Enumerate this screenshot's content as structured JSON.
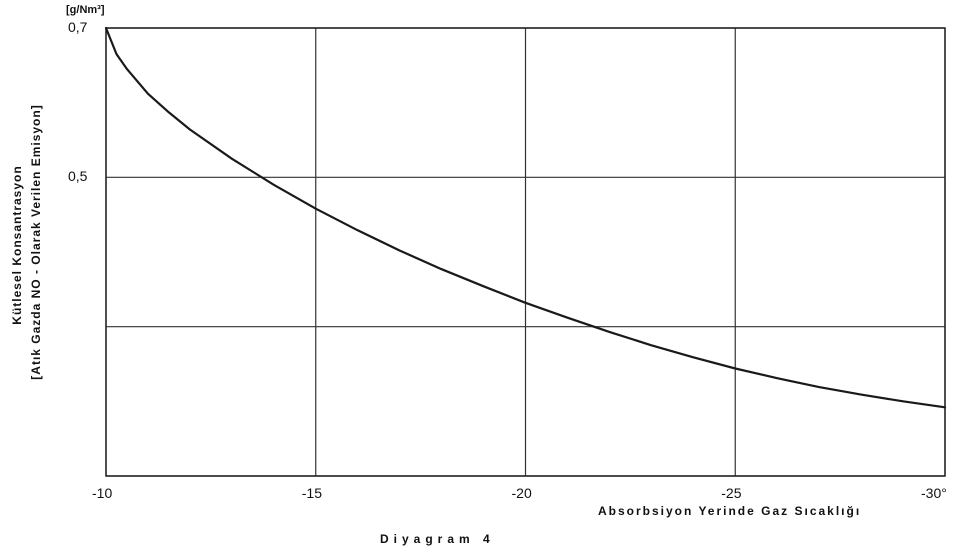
{
  "chart_data": {
    "type": "line",
    "unit_label": "[g/Nm³]",
    "ylabel_line1": "Kütlesel  Konsantrasyon",
    "ylabel_line2": "[Atık  Gazda  NO - Olarak  Verilen  Emisyon]",
    "xlabel": "Absorbsiyon   Yerinde   Gaz   Sıcaklığı",
    "caption": "Diyagram  4",
    "xlim": [
      -10,
      -30
    ],
    "ylim": [
      0.1,
      0.7
    ],
    "x_ticks": [
      {
        "value": -10,
        "label": "-10"
      },
      {
        "value": -15,
        "label": "-15"
      },
      {
        "value": -20,
        "label": "-20"
      },
      {
        "value": -25,
        "label": "-25"
      },
      {
        "value": -30,
        "label": "-30°"
      }
    ],
    "y_ticks": [
      {
        "value": 0.7,
        "label": "0,7"
      },
      {
        "value": 0.5,
        "label": "0,5"
      }
    ],
    "y_gridlines": [
      0.7,
      0.5,
      0.3,
      0.1
    ],
    "series": [
      {
        "x": [
          -10,
          -10.25,
          -10.5,
          -11,
          -11.5,
          -12,
          -13,
          -14,
          -15,
          -16,
          -17,
          -18,
          -19,
          -20,
          -21,
          -22,
          -23,
          -24,
          -25,
          -26,
          -27,
          -28,
          -29,
          -30
        ],
        "y": [
          0.7,
          0.665,
          0.645,
          0.612,
          0.587,
          0.564,
          0.525,
          0.49,
          0.458,
          0.429,
          0.402,
          0.377,
          0.354,
          0.332,
          0.312,
          0.293,
          0.275,
          0.259,
          0.244,
          0.231,
          0.219,
          0.209,
          0.2,
          0.192
        ]
      }
    ],
    "grid": true,
    "line_color": "#1a1a1a"
  }
}
